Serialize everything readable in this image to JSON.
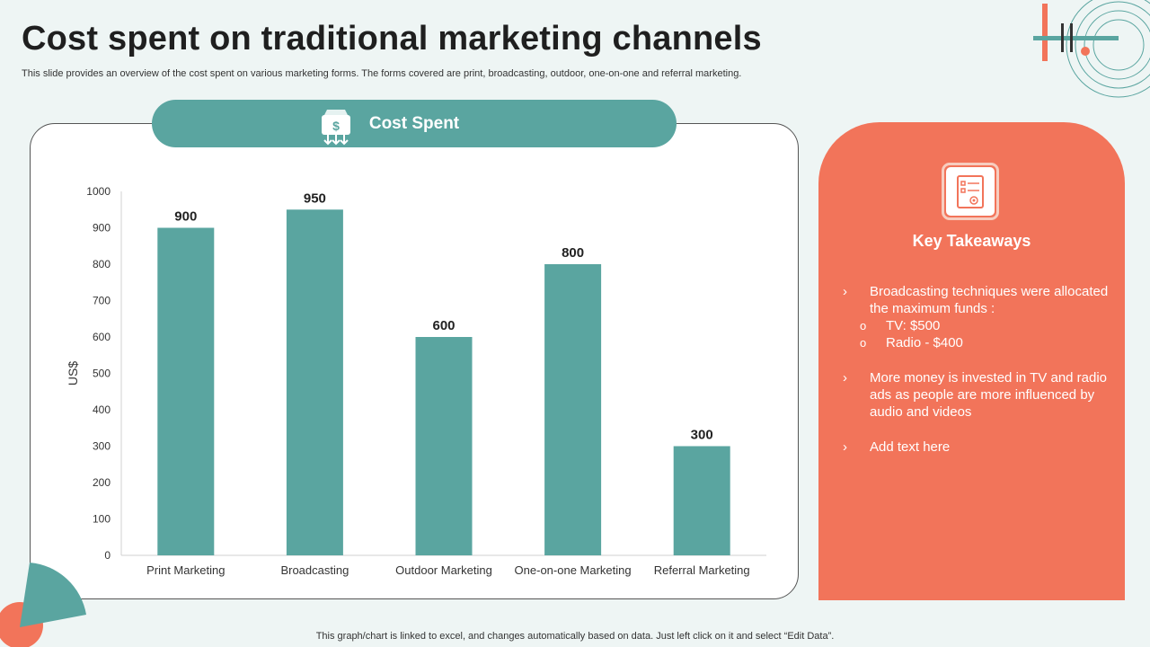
{
  "page": {
    "title": "Cost spent on traditional marketing channels",
    "subtitle": "This slide provides an overview of the cost spent on various marketing forms. The forms covered are print, broadcasting, outdoor, one-on-one and referral marketing.",
    "footer": "This graph/chart is linked to excel,  and changes automatically based on data. Just left click on it and select “Edit Data”."
  },
  "chart_header": {
    "label": "Cost Spent",
    "icon": "money-bag-icon"
  },
  "chart_data": {
    "type": "bar",
    "title": "Cost Spent",
    "categories": [
      "Print Marketing",
      "Broadcasting",
      "Outdoor Marketing",
      "One-on-one Marketing",
      "Referral Marketing"
    ],
    "values": [
      900,
      950,
      600,
      800,
      300
    ],
    "ylabel": "US$",
    "xlabel": "",
    "ylim": [
      0,
      1000
    ],
    "yticks": [
      0,
      100,
      200,
      300,
      400,
      500,
      600,
      700,
      800,
      900,
      1000
    ],
    "color": "#5aa5a0",
    "grid": false,
    "data_labels": true
  },
  "takeaways": {
    "title": "Key Takeaways",
    "icon": "document-checklist-icon",
    "bullet_marker": "›",
    "sub_marker": "o",
    "items": [
      {
        "text": "Broadcasting techniques were allocated the maximum funds :",
        "subs": [
          "TV: $500",
          "Radio - $400"
        ]
      },
      {
        "text": "More money is invested in TV and radio ads as people are more influenced by audio and videos"
      },
      {
        "text": "Add text here"
      }
    ]
  },
  "colors": {
    "accent": "#5aa5a0",
    "coral": "#f2745a",
    "background": "#eef5f4"
  }
}
